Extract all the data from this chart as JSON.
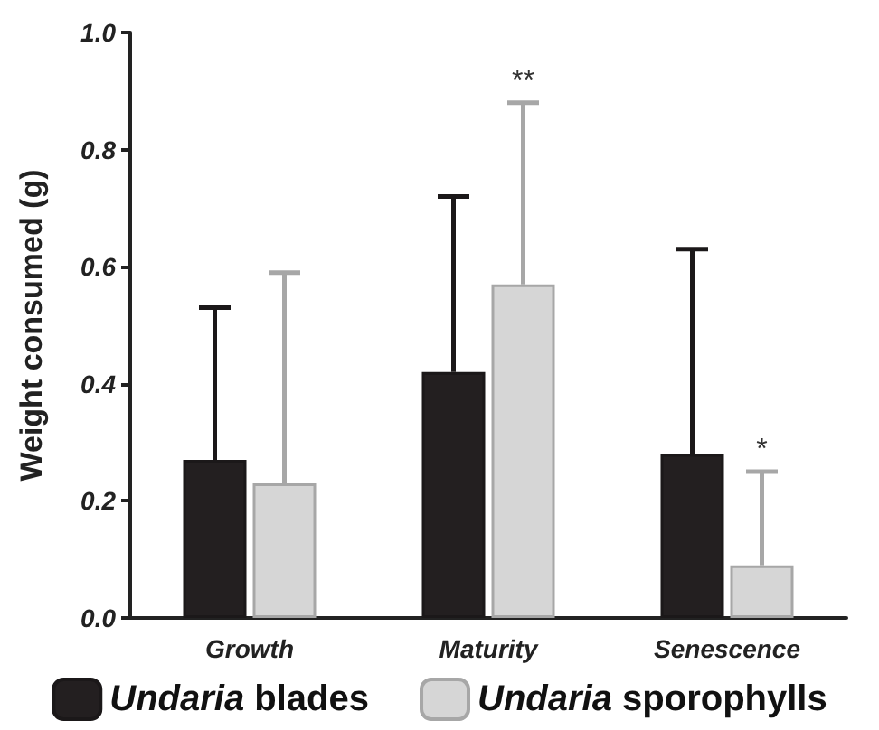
{
  "chart_data": {
    "type": "bar",
    "ylabel": "Weight consumed (g)",
    "categories": [
      "Growth",
      "Maturity",
      "Senescence"
    ],
    "series": [
      {
        "name": "Undaria blades",
        "color": "#231f20",
        "values": [
          0.27,
          0.42,
          0.28
        ],
        "errors": [
          [
            0.27,
            0.53
          ],
          [
            0.42,
            0.72
          ],
          [
            0.28,
            0.63
          ]
        ]
      },
      {
        "name": "Undaria sporophylls",
        "color": "#d6d6d6",
        "values": [
          0.23,
          0.57,
          0.09
        ],
        "errors": [
          [
            0.23,
            0.59
          ],
          [
            0.57,
            0.88
          ],
          [
            0.09,
            0.25
          ]
        ]
      }
    ],
    "annotations": [
      "**",
      "*"
    ],
    "ylim": [
      0,
      1
    ],
    "yticks": [
      {
        "value": 0,
        "label": "0.0"
      },
      {
        "value": 0.2,
        "label": "0.2"
      },
      {
        "value": 0.4,
        "label": "0.4"
      },
      {
        "value": 0.6,
        "label": "0.6"
      },
      {
        "value": 0.8,
        "label": "0.8"
      },
      {
        "value": 1,
        "label": "1.0"
      }
    ],
    "grid": false,
    "legend": "bottom"
  }
}
